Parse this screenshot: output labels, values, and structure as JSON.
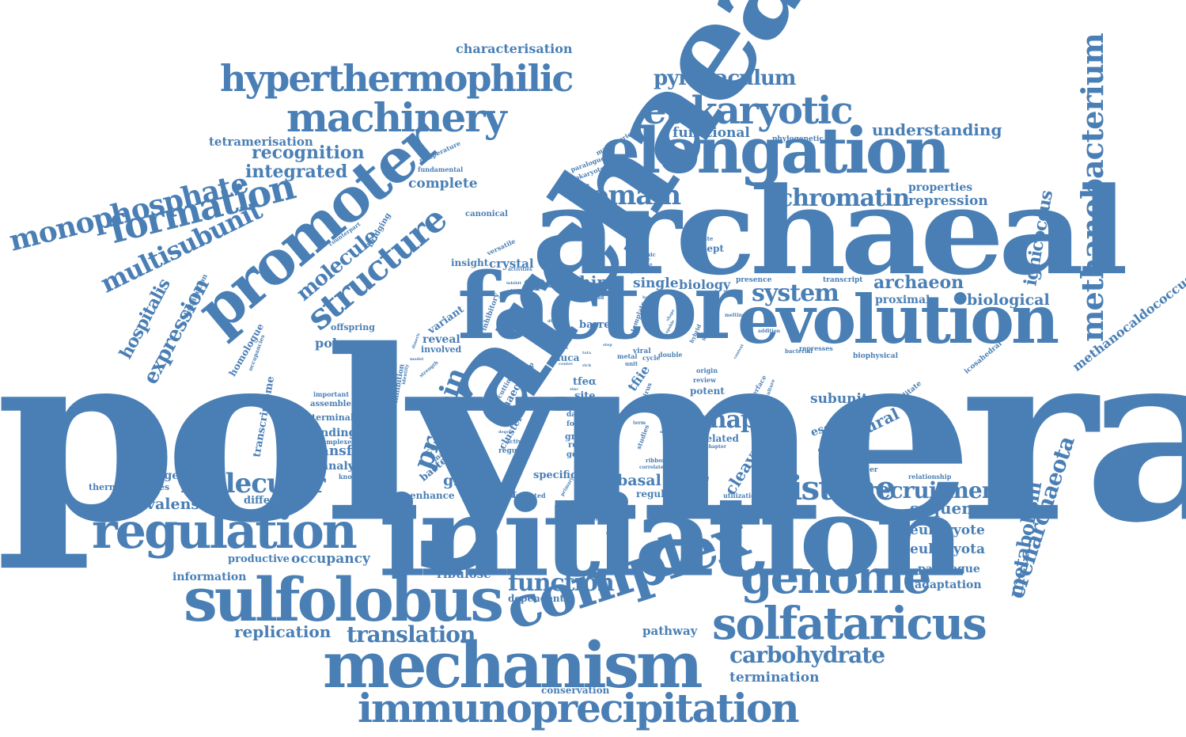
{
  "accent_color": "#4a7fb5",
  "words": {
    "polymerase": "polymerase",
    "initiation": "initiation",
    "archaeal": "archaeal",
    "archaea": "archaea",
    "factor": "factor",
    "evolution": "evolution",
    "elongation": "elongation",
    "promoter": "promoter",
    "sulfolobus": "sulfolobus",
    "complex": "complex",
    "mechanism": "mechanism",
    "regulation": "regulation",
    "genome": "genome",
    "solfataricus": "solfataricus",
    "immunoprecipitation": "immunoprecipitation",
    "hyperthermophilic": "hyperthermophilic",
    "machinery": "machinery",
    "eukaryotic": "eukaryotic",
    "formation": "formation",
    "monophosphate": "monophosphate",
    "structure": "structure",
    "methanobacterium": "methanobacterium",
    "domain": "domain",
    "chromatin": "chromatin",
    "histone": "histone",
    "molecular": "molecular",
    "multisubunit": "multisubunit",
    "system": "system",
    "recruitment": "recruitment",
    "carbohydrate": "carbohydrate",
    "translation": "translation",
    "function": "function",
    "pyrobaculum": "pyrobaculum",
    "molecule": "molecule",
    "protein": "protein",
    "rnap": "rnap",
    "expression": "expression",
    "hospitalis": "hospitalis",
    "crenarchaeota": "crenarchaeota",
    "metabolism": "metabolism",
    "ignicoccus": "ignicoccus",
    "methanocaldococcus": "methanocaldococcus",
    "characterisation": "characterisation",
    "recognition": "recognition",
    "integrated": "integrated",
    "tetramerisation": "tetramerisation",
    "understanding": "understanding",
    "functional": "functional",
    "complete": "complete",
    "properties": "properties",
    "repression": "repression",
    "archaeon": "archaeon",
    "biological": "biological",
    "proximal": "proximal",
    "open": "open",
    "chip": "chip",
    "single": "single",
    "biology": "biology",
    "crystal": "crystal",
    "insight": "insight",
    "concept": "concept",
    "barrel": "barrel",
    "polymer": "polymer",
    "reveal": "reveal",
    "variant": "variant",
    "involved": "involved",
    "offspring": "offspring",
    "homologue": "homologue",
    "subunit": "subunit",
    "escape": "escape",
    "structural": "structural",
    "inhibitor": "inhibitor",
    "related": "related",
    "cleavage": "cleavage",
    "sequence": "sequence",
    "eukaryote": "eukaryote",
    "eukaryota": "eukaryota",
    "paralogue": "paralogue",
    "adaptation": "adaptation",
    "termination": "termination",
    "conservation": "conservation",
    "pathway": "pathway",
    "dependent": "dependent",
    "ribulose": "ribulose",
    "replication": "replication",
    "information": "information",
    "productive": "productive",
    "occupancy": "occupancy",
    "ambivalens": "ambivalens",
    "different": "different",
    "challenge": "challenge",
    "thermoproteales": "thermoproteales",
    "global": "global",
    "specific": "specific",
    "basal": "basal",
    "unique": "unique",
    "regulator": "regulator",
    "element": "element",
    "enhance": "enhance",
    "binding": "binding",
    "transfer": "transfer",
    "analysis": "analysis",
    "terminal": "terminal",
    "assemble": "assemble",
    "transcriptome": "transcriptome",
    "bacteria": "bacteria",
    "central": "central",
    "archaeo": "archaeo",
    "cluster": "cluster",
    "tfea": "tfeα",
    "site": "site",
    "turn": "turn",
    "growth": "growth",
    "recent": "recent",
    "general": "general",
    "result": "result",
    "luca": "luca",
    "tfiie": "tfiie",
    "potent": "potent",
    "canonical": "canonical",
    "bridging": "bridging",
    "fundamental": "fundamental",
    "prokaryote": "prokaryote",
    "paralogues": "paralogues",
    "machineries": "machineries",
    "phylogenetic": "phylogenetic",
    "temperature": "temperature",
    "versatile": "versatile",
    "contribute": "contribute",
    "dynamic": "dynamic",
    "presence": "presence",
    "transcript": "transcript",
    "interface": "interface",
    "represses": "represses",
    "bacterial": "bacterial",
    "biophysical": "biophysical",
    "icosahedral": "icosahedral",
    "facilitate": "facilitate",
    "member": "member",
    "relationship": "relationship",
    "utilization": "utilization",
    "compelling": "compelling",
    "unrelated": "unrelated",
    "knowledge": "knowledge",
    "important": "important",
    "complexes": "complexes",
    "mapping": "mapping",
    "regulate": "regulate",
    "distribution": "distribution",
    "counterpart": "counterpart",
    "occupancies": "occupancies",
    "inhibition": "inhibition",
    "interesting": "interesting",
    "inhibitory": "inhibitory",
    "apparatus": "apparatus",
    "ribbon": "ribbon",
    "correlate": "correlate",
    "studies": "studies",
    "metal": "metal",
    "viral": "viral",
    "double": "double",
    "cycle": "cycle",
    "unit": "unit",
    "origin": "origin",
    "review": "review",
    "hybrid": "hybrid",
    "melting": "melting",
    "position": "position",
    "chapter": "chapter",
    "data": "data",
    "form": "form",
    "activity": "activity",
    "edge": "edge",
    "strength": "strength",
    "dimeric": "dimeric",
    "template": "template",
    "affinity": "affinity",
    "strand": "strand",
    "tetramer": "tetramer",
    "progress": "progress",
    "activities": "activities",
    "distinct": "distinct",
    "similar": "similar",
    "inhibit": "inhibit",
    "identity": "identity",
    "cutting": "cutting",
    "clamp": "clamp",
    "degree": "degree",
    "stability": "stability",
    "primary": "primary",
    "employ": "employ",
    "substance": "substance",
    "target": "target",
    "addition": "addition",
    "flexible": "flexible",
    "binding2": "binding",
    "capable": "capable",
    "sulphate": "sulphate",
    "region": "region",
    "model": "model",
    "genes": "genes",
    "host": "host",
    "step": "step",
    "shape": "shape",
    "level": "level",
    "term": "term",
    "virus": "virus",
    "rich": "rich",
    "zinc": "zinc",
    "centre": "centre",
    "tata": "tata",
    "basis": "basis",
    "mode": "mode",
    "culture": "culture",
    "context": "context"
  }
}
